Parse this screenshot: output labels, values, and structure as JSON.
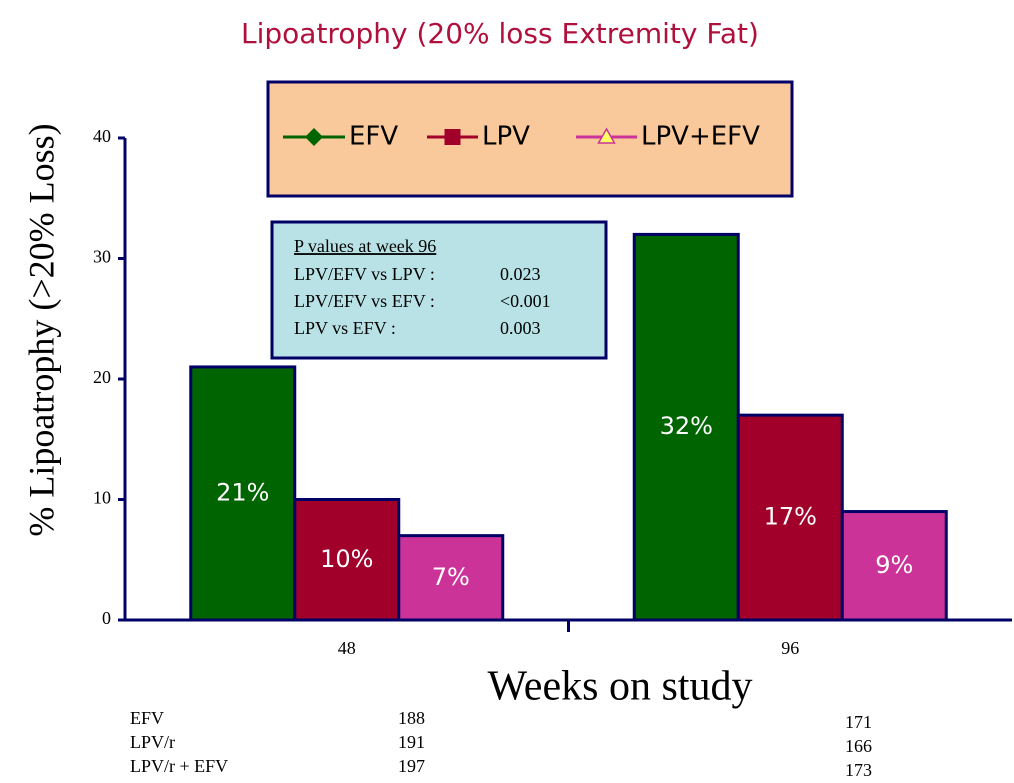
{
  "chart_data": {
    "type": "bar",
    "title": "Lipoatrophy (20% loss Extremity Fat)",
    "ylabel": "% Lipoatrophy (>20% Loss)",
    "xlabel": "Weeks on study",
    "categories": [
      "48",
      "96"
    ],
    "series": [
      {
        "name": "EFV",
        "color": "#006400",
        "marker": "diamond",
        "values": [
          21,
          32
        ],
        "value_labels": [
          "21%",
          "32%"
        ]
      },
      {
        "name": "LPV",
        "color": "#a0002a",
        "marker": "square",
        "values": [
          10,
          17
        ],
        "value_labels": [
          "10%",
          "17%"
        ]
      },
      {
        "name": "LPV+EFV",
        "color": "#cc3399",
        "marker": "triangle",
        "values": [
          7,
          9
        ],
        "value_labels": [
          "7%",
          "9%"
        ]
      }
    ],
    "ylim": [
      0,
      40
    ],
    "yticks": [
      0,
      10,
      20,
      30,
      40
    ],
    "legend": "top",
    "annotation": {
      "title": "P values at week 96",
      "rows": [
        [
          "LPV/EFV vs LPV :",
          "0.023"
        ],
        [
          "LPV/EFV vs EFV :",
          "<0.001"
        ],
        [
          "LPV vs EFV :",
          "0.003"
        ]
      ]
    }
  },
  "table": {
    "rows": [
      [
        "EFV",
        188,
        171
      ],
      [
        "LPV/r",
        191,
        166
      ],
      [
        "LPV/r + EFV",
        197,
        173
      ]
    ]
  }
}
